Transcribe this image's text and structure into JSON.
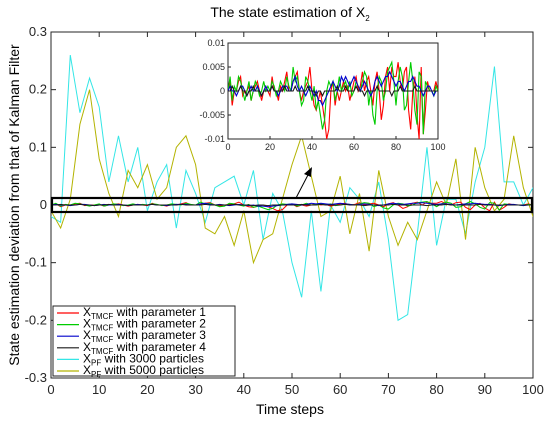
{
  "chart_data": {
    "type": "line",
    "title": {
      "base": "The state estimation of X",
      "sub": "2"
    },
    "xlabel": "Time steps",
    "ylabel": "State estimation deviation from that of Kalman Filter",
    "xlim": [
      0,
      100
    ],
    "ylim": [
      -0.3,
      0.3
    ],
    "xticks": [
      "0",
      "10",
      "20",
      "30",
      "40",
      "50",
      "60",
      "70",
      "80",
      "90",
      "100"
    ],
    "yticks": [
      "0.3",
      "0.2",
      "0.1",
      "0",
      "-0.1",
      "-0.2",
      "-0.3"
    ],
    "legend_position": "bottom-left",
    "series": [
      {
        "name": "X",
        "sub": "TMCF",
        "suffix": " with parameter 1",
        "color": "#ff0000",
        "step": 1,
        "values": [
          0,
          0.002,
          -0.003,
          0,
          0,
          0.002,
          0.003,
          -0.001,
          0,
          0,
          0.001,
          -0.002,
          0,
          0.001,
          0.002,
          0,
          -0.002,
          0,
          0.001,
          0,
          -0.001,
          0.003,
          0,
          0,
          -0.002,
          0.001,
          0,
          0.002,
          0.004,
          0,
          0,
          0.002,
          0.003,
          0.004,
          0,
          -0.002,
          0,
          0.001,
          0.002,
          0.005,
          0,
          -0.003,
          -0.004,
          -0.002,
          0,
          -0.003,
          -0.006,
          -0.01,
          -0.008,
          0,
          0.002,
          -0.003,
          0,
          -0.002,
          0,
          0.002,
          0,
          0.001,
          -0.002,
          0,
          0.002,
          0.003,
          0,
          0.001,
          0.004,
          0,
          0.002,
          0.003,
          0,
          -0.003,
          0.002,
          0.004,
          0,
          -0.006,
          -0.003,
          0.003,
          0.005,
          0,
          0.005,
          0.003,
          0.003,
          0.006,
          0.002,
          0,
          0.004,
          0.005,
          -0.004,
          -0.008,
          0,
          0.003,
          -0.005,
          -0.01,
          0.005,
          -0.009,
          -0.004,
          0.002,
          0,
          0,
          0,
          0.002,
          0
        ]
      },
      {
        "name": "X",
        "sub": "TMCF",
        "suffix": " with parameter 2",
        "color": "#00cc00",
        "step": 1,
        "values": [
          0,
          0.003,
          -0.002,
          0.001,
          0,
          0.003,
          0.002,
          0,
          -0.002,
          0,
          0.002,
          -0.002,
          0,
          0.002,
          0.001,
          -0.001,
          0,
          0.002,
          0,
          0.001,
          0,
          0.002,
          0.001,
          -0.001,
          0,
          0.002,
          0.001,
          0,
          0.003,
          0.001,
          0,
          0.005,
          0.002,
          0.003,
          0,
          -0.003,
          -0.002,
          0.003,
          0.002,
          0,
          -0.002,
          0.001,
          -0.004,
          -0.002,
          -0.005,
          -0.008,
          -0.006,
          0,
          0.002,
          0.001,
          0.002,
          -0.002,
          0,
          0.003,
          0,
          0.001,
          0.002,
          0,
          0.002,
          -0.001,
          0,
          0.002,
          0.001,
          0,
          0.002,
          0.004,
          0.003,
          -0.003,
          0,
          -0.005,
          -0.007,
          0,
          0.003,
          0.002,
          -0.002,
          0,
          0.004,
          0.005,
          0.006,
          0.002,
          -0.003,
          0.002,
          0.005,
          0.003,
          -0.004,
          -0.003,
          0.002,
          0.006,
          0.002,
          -0.004,
          -0.007,
          0.004,
          0.003,
          -0.009,
          0.002,
          0.001,
          0,
          0,
          -0.001,
          0.001,
          0
        ]
      },
      {
        "name": "X",
        "sub": "TMCF",
        "suffix": " with parameter 3",
        "color": "#0000cc",
        "step": 1,
        "values": [
          0,
          0.001,
          0,
          0,
          -0.001,
          0,
          0.001,
          0.001,
          0,
          -0.001,
          0,
          0.001,
          0,
          0,
          0.001,
          0,
          -0.001,
          0,
          0.001,
          0,
          0,
          0.001,
          0,
          0,
          -0.001,
          0,
          0.001,
          0.001,
          0.001,
          0,
          0,
          0.002,
          0.003,
          0.001,
          0,
          0.001,
          0,
          -0.001,
          0,
          0.001,
          0,
          -0.001,
          0,
          -0.002,
          -0.002,
          -0.003,
          -0.002,
          -0.001,
          0,
          0.001,
          0.002,
          0.001,
          0,
          0.001,
          0.003,
          0.002,
          0.003,
          0.002,
          0.001,
          0.002,
          0.003,
          0.002,
          0.001,
          0,
          0.001,
          0.002,
          0.001,
          0,
          -0.001,
          0,
          0.002,
          0.003,
          0.002,
          0.001,
          0.002,
          0.003,
          0.003,
          0.004,
          0.003,
          0.002,
          0.001,
          0.002,
          0.002,
          0.001,
          0,
          0.001,
          0.002,
          0.002,
          0.003,
          0.002,
          0.001,
          0.001,
          0,
          -0.001,
          0,
          0.001,
          0.001,
          0,
          -0.001,
          0,
          0
        ]
      },
      {
        "name": "X",
        "sub": "TMCF",
        "suffix": " with parameter 4",
        "color": "#1a1a1a",
        "step": 1,
        "values": [
          0,
          0,
          0.001,
          0,
          0,
          0,
          0.001,
          0,
          0,
          -0.001,
          0,
          0,
          0.001,
          0,
          0,
          0,
          -0.001,
          0,
          0,
          0,
          0,
          0.001,
          0,
          0,
          0,
          0,
          0,
          0.001,
          0,
          0,
          0,
          0,
          0.001,
          0,
          0,
          0,
          0,
          0,
          0.001,
          0,
          0,
          0,
          -0.001,
          0,
          0,
          -0.001,
          0,
          0,
          0,
          0,
          0,
          0,
          0.001,
          0,
          0,
          0,
          0.001,
          0,
          0,
          0,
          0,
          0.001,
          0,
          0,
          0,
          -0.001,
          0,
          0,
          0,
          0,
          0,
          0.001,
          0,
          0,
          0,
          0,
          0,
          0,
          -0.001,
          0,
          0,
          0,
          0.001,
          0,
          0,
          0,
          0,
          0,
          0,
          0.001,
          0,
          0,
          0,
          0,
          0,
          0,
          0,
          0,
          0,
          0,
          0
        ]
      },
      {
        "name": "X",
        "sub": "PF",
        "suffix": " with 3000 particles",
        "color": "#33e6e6",
        "step": 2,
        "values": [
          -0.02,
          -0.03,
          0.26,
          0.16,
          0.22,
          0.17,
          0.04,
          0.12,
          0.04,
          0.1,
          -0.01,
          0.04,
          0.07,
          -0.04,
          0.06,
          0.02,
          -0.03,
          0.03,
          0.04,
          0.05,
          0,
          0.06,
          -0.06,
          0.02,
          -0.01,
          -0.1,
          -0.16,
          -0.01,
          -0.15,
          0,
          -0.03,
          0.03,
          0.01,
          -0.02,
          0.04,
          -0.06,
          -0.2,
          -0.19,
          -0.05,
          0.1,
          -0.07,
          0.01,
          0.01,
          -0.05,
          0.04,
          0.1,
          0.24,
          0.04,
          0.04,
          0,
          0.03
        ]
      },
      {
        "name": "X",
        "sub": "PF",
        "suffix": " with 5000 particles",
        "color": "#b3b300",
        "step": 2,
        "values": [
          -0.01,
          -0.04,
          0.01,
          0.14,
          0.2,
          0.08,
          0.02,
          -0.02,
          0.06,
          0.03,
          0.07,
          0.01,
          0.03,
          0.1,
          0.12,
          0.07,
          -0.04,
          -0.05,
          -0.02,
          -0.07,
          -0.01,
          -0.1,
          -0.06,
          -0.05,
          0.01,
          0.07,
          0.12,
          0.05,
          -0.02,
          -0.01,
          0.05,
          -0.05,
          0.02,
          -0.08,
          0.06,
          -0.02,
          -0.07,
          -0.03,
          -0.06,
          -0.01,
          0.04,
          0,
          0.08,
          -0.06,
          0.1,
          0.03,
          -0.01,
          0.01,
          0.12,
          0.03,
          -0.02
        ]
      }
    ],
    "inset": {
      "xlim": [
        0,
        100
      ],
      "ylim": [
        -0.01,
        0.01
      ],
      "xticks": [
        "0",
        "20",
        "40",
        "60",
        "80",
        "100"
      ],
      "yticks": [
        "0.01",
        "0.005",
        "0",
        "-0.005",
        "-0.01"
      ]
    }
  }
}
